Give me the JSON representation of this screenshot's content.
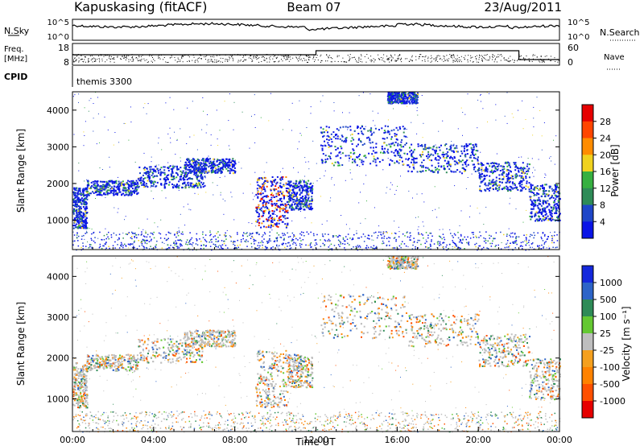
{
  "header": {
    "station": "Kapuskasing (fitACF)",
    "beam": "Beam 07",
    "date": "23/Aug/2011"
  },
  "panels_top": {
    "nsky_label": "N.Sky",
    "nsearch_label": "N.Search",
    "nsky_ticks": [
      "10^5",
      "10^0"
    ],
    "nsearch_ticks": [
      "10^5",
      "10^0"
    ],
    "freq_label": "Freq.",
    "freq_unit": "[MHz]",
    "freq_ticks": [
      "18",
      "8"
    ],
    "nave_label": "Nave",
    "nave_ticks": [
      "60",
      "0"
    ],
    "cpid_label": "CPID",
    "cpid_value": "themis 3300"
  },
  "chart_data": [
    {
      "type": "heatmap",
      "name": "Power",
      "ylabel": "Slant Range [km]",
      "yticks": [
        1000,
        2000,
        3000,
        4000
      ],
      "ylim": [
        200,
        4500
      ],
      "xlim": [
        0,
        24
      ],
      "colorbar": {
        "label": "Power [dB]",
        "ticks": [
          "4",
          "8",
          "12",
          "16",
          "20",
          "24",
          "28"
        ],
        "colors": [
          "#0a14e6",
          "#1e46c8",
          "#2e8b57",
          "#36b040",
          "#f0d21e",
          "#ff8c00",
          "#ff4500",
          "#e60000"
        ]
      }
    },
    {
      "type": "heatmap",
      "name": "Velocity",
      "ylabel": "Slant Range [km]",
      "yticks": [
        1000,
        2000,
        3000,
        4000
      ],
      "ylim": [
        200,
        4500
      ],
      "xlim": [
        0,
        24
      ],
      "xlabel": "Time UT",
      "xticks": [
        "00:00",
        "04:00",
        "08:00",
        "12:00",
        "16:00",
        "20:00",
        "00:00"
      ],
      "colorbar": {
        "label": "Velocity [m s⁻¹]",
        "ticks": [
          "1000",
          "500",
          "100",
          "25",
          "-25",
          "-100",
          "-500",
          "-1000"
        ],
        "colors": [
          "#1428dc",
          "#2d64c8",
          "#2e8b57",
          "#64c832",
          "#bebebe",
          "#f5a01e",
          "#ff8200",
          "#ff5000",
          "#e60000"
        ]
      }
    }
  ]
}
